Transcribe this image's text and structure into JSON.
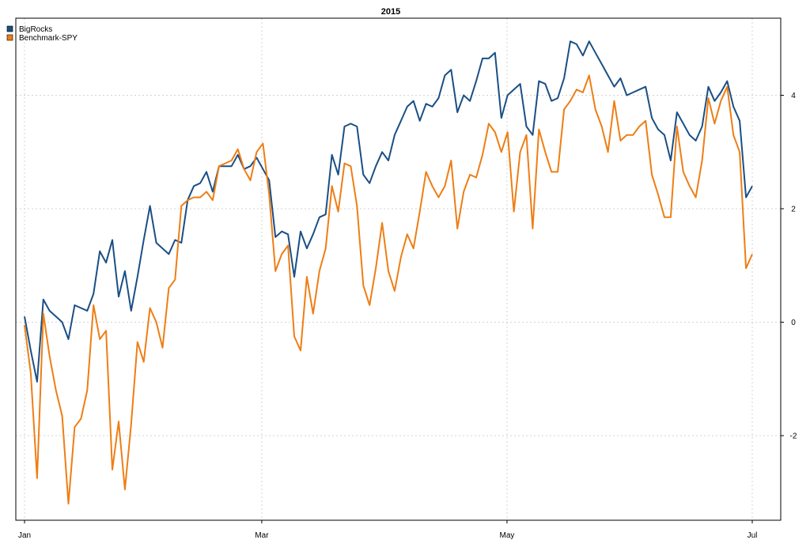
{
  "chart_data": {
    "type": "line",
    "title": "2015",
    "xlabel": "",
    "ylabel": "",
    "x_ticks": [
      "Jan",
      "Mar",
      "May",
      "Jul"
    ],
    "y_ticks": [
      -2,
      0,
      2,
      4
    ],
    "ylim": [
      -3.5,
      5.3
    ],
    "grid": true,
    "legend_position": "top-left",
    "series": [
      {
        "name": "BigRocks",
        "color": "#1a4f85",
        "values": [
          0.1,
          -0.5,
          -1.05,
          0.4,
          0.2,
          0.1,
          0.0,
          -0.3,
          0.3,
          0.25,
          0.2,
          0.5,
          1.25,
          1.05,
          1.45,
          0.45,
          0.9,
          0.2,
          0.8,
          1.45,
          2.05,
          1.4,
          1.3,
          1.2,
          1.45,
          1.4,
          2.15,
          2.4,
          2.45,
          2.65,
          2.3,
          2.75,
          2.75,
          2.75,
          2.95,
          2.7,
          2.75,
          2.9,
          2.7,
          2.5,
          1.5,
          1.6,
          1.55,
          0.8,
          1.6,
          1.3,
          1.55,
          1.85,
          1.9,
          2.95,
          2.6,
          3.45,
          3.5,
          3.45,
          2.6,
          2.45,
          2.75,
          3.0,
          2.85,
          3.3,
          3.55,
          3.8,
          3.9,
          3.55,
          3.85,
          3.8,
          3.95,
          4.35,
          4.45,
          3.7,
          4.0,
          3.9,
          4.25,
          4.65,
          4.65,
          4.75,
          3.6,
          4.0,
          4.1,
          4.2,
          3.45,
          3.3,
          4.25,
          4.2,
          3.9,
          3.95,
          4.3,
          4.95,
          4.9,
          4.7,
          4.95,
          4.75,
          4.55,
          4.35,
          4.15,
          4.3,
          4.0,
          4.05,
          4.1,
          4.15,
          3.6,
          3.4,
          3.3,
          2.85,
          3.7,
          3.5,
          3.3,
          3.2,
          3.45,
          4.15,
          3.9,
          4.05,
          4.25,
          3.8,
          3.55,
          2.2,
          2.4
        ]
      },
      {
        "name": "Benchmark-SPY",
        "color": "#ee7e14",
        "values": [
          -0.05,
          -0.9,
          -2.75,
          0.15,
          -0.6,
          -1.2,
          -1.65,
          -3.2,
          -1.85,
          -1.7,
          -1.2,
          0.3,
          -0.3,
          -0.15,
          -2.6,
          -1.75,
          -2.95,
          -1.8,
          -0.35,
          -0.7,
          0.25,
          0.0,
          -0.45,
          0.6,
          0.75,
          2.05,
          2.15,
          2.2,
          2.2,
          2.3,
          2.15,
          2.75,
          2.8,
          2.85,
          3.05,
          2.7,
          2.5,
          3.0,
          3.15,
          2.25,
          0.9,
          1.2,
          1.35,
          -0.25,
          -0.5,
          0.8,
          0.15,
          0.9,
          1.3,
          2.4,
          1.95,
          2.8,
          2.75,
          2.05,
          0.65,
          0.3,
          0.95,
          1.75,
          0.9,
          0.55,
          1.15,
          1.55,
          1.3,
          1.95,
          2.65,
          2.4,
          2.2,
          2.4,
          2.85,
          1.65,
          2.3,
          2.6,
          2.55,
          2.95,
          3.5,
          3.35,
          3.0,
          3.35,
          1.95,
          3.0,
          3.3,
          1.65,
          3.4,
          3.0,
          2.65,
          2.65,
          3.75,
          3.9,
          4.1,
          4.05,
          4.35,
          3.75,
          3.45,
          3.0,
          3.9,
          3.2,
          3.3,
          3.3,
          3.45,
          3.55,
          2.6,
          2.25,
          1.85,
          1.85,
          3.45,
          2.65,
          2.4,
          2.2,
          2.85,
          3.95,
          3.5,
          3.9,
          4.15,
          3.3,
          3.0,
          0.95,
          1.2
        ]
      }
    ]
  }
}
